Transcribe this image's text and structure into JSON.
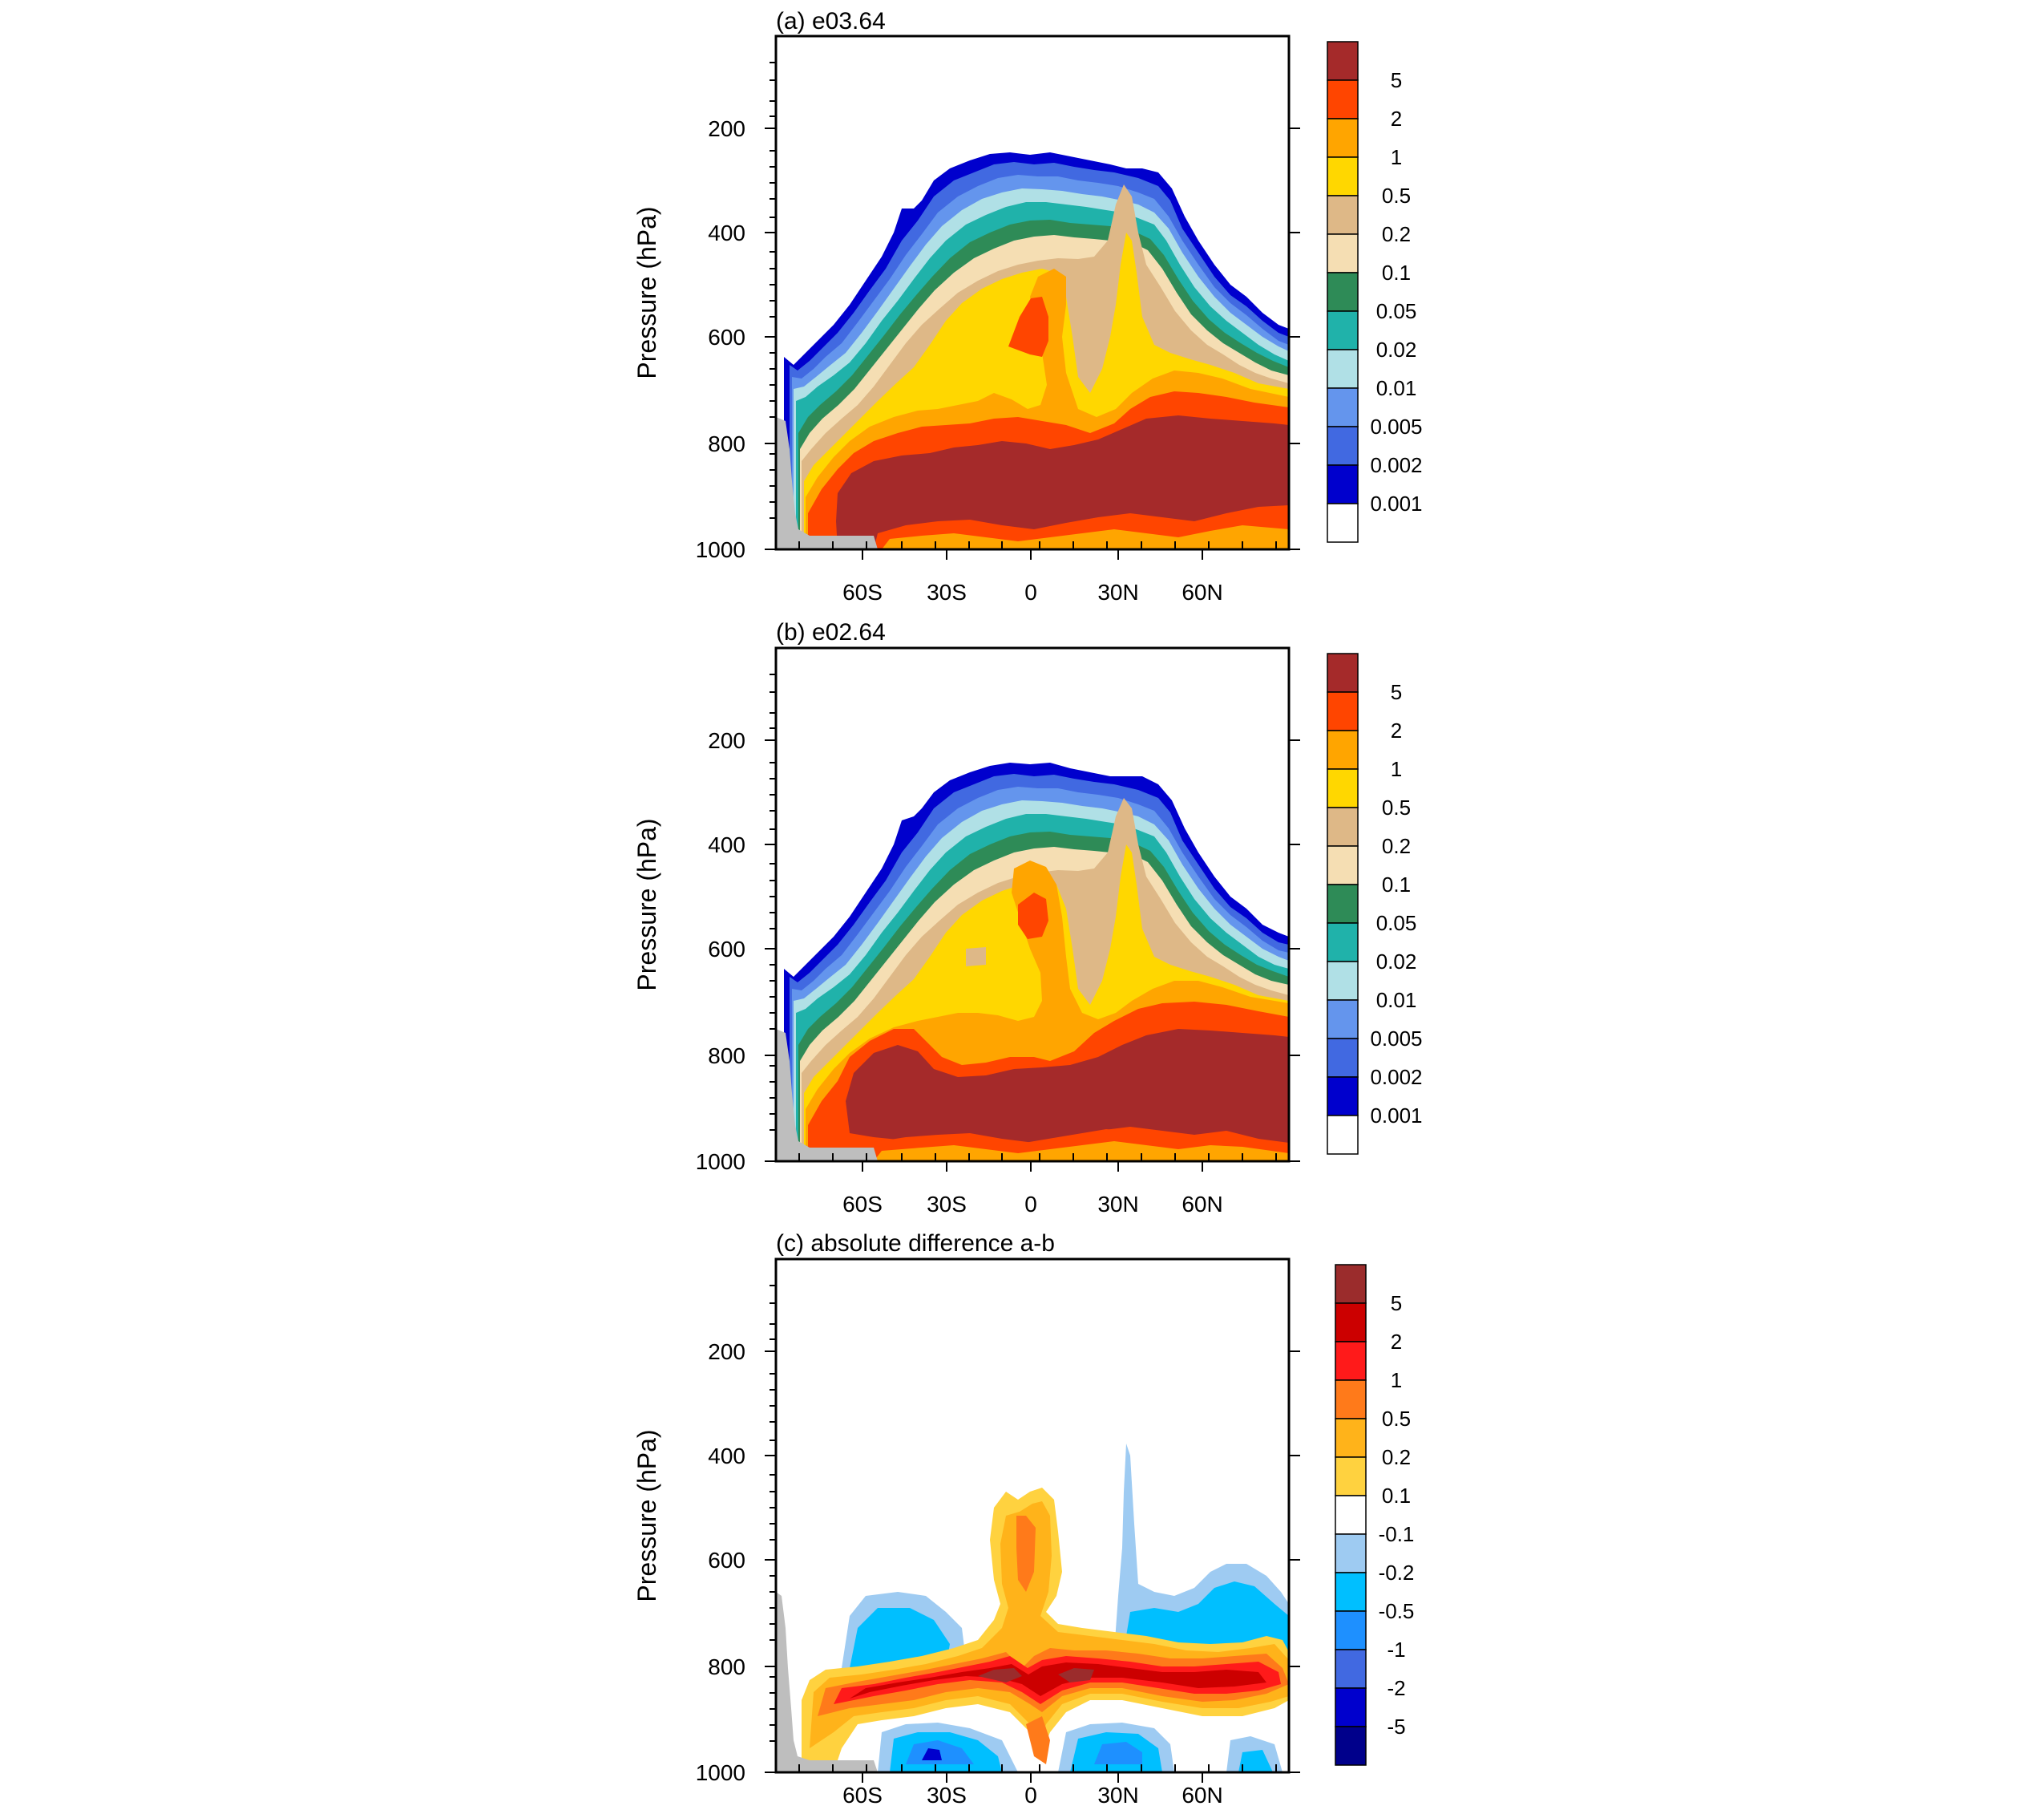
{
  "chart_data": [
    {
      "type": "heatmap",
      "title": "(a) e03.64",
      "ylabel": "Pressure (hPa)",
      "y_ticks": [
        "200",
        "400",
        "600",
        "800",
        "1000"
      ],
      "y_tick_values": [
        200,
        400,
        600,
        800,
        1000
      ],
      "x_ticks": [
        "60S",
        "30S",
        "0",
        "30N",
        "60N"
      ],
      "x_tick_values": [
        -60,
        -30,
        0,
        30,
        60
      ],
      "xlim": [
        -90,
        90
      ],
      "ylim": [
        1000,
        25
      ],
      "colorbar": {
        "labels": [
          "5",
          "2",
          "1",
          "0.5",
          "0.2",
          "0.1",
          "0.05",
          "0.02",
          "0.01",
          "0.005",
          "0.002",
          "0.001"
        ],
        "colors": [
          "#a52a2a",
          "#ff4500",
          "#ffa500",
          "#ffd700",
          "#deb887",
          "#f5deb3",
          "#2e8b57",
          "#20b2aa",
          "#b0e0e6",
          "#6495ed",
          "#4169e1",
          "#0000cd",
          "#ffffff"
        ]
      }
    },
    {
      "type": "heatmap",
      "title": "(b) e02.64",
      "ylabel": "Pressure (hPa)",
      "y_ticks": [
        "200",
        "400",
        "600",
        "800",
        "1000"
      ],
      "y_tick_values": [
        200,
        400,
        600,
        800,
        1000
      ],
      "x_ticks": [
        "60S",
        "30S",
        "0",
        "30N",
        "60N"
      ],
      "x_tick_values": [
        -60,
        -30,
        0,
        30,
        60
      ],
      "xlim": [
        -90,
        90
      ],
      "ylim": [
        1000,
        25
      ],
      "colorbar": {
        "labels": [
          "5",
          "2",
          "1",
          "0.5",
          "0.2",
          "0.1",
          "0.05",
          "0.02",
          "0.01",
          "0.005",
          "0.002",
          "0.001"
        ],
        "colors": [
          "#a52a2a",
          "#ff4500",
          "#ffa500",
          "#ffd700",
          "#deb887",
          "#f5deb3",
          "#2e8b57",
          "#20b2aa",
          "#b0e0e6",
          "#6495ed",
          "#4169e1",
          "#0000cd",
          "#ffffff"
        ]
      }
    },
    {
      "type": "heatmap",
      "title": "(c) absolute difference a-b",
      "ylabel": "Pressure (hPa)",
      "y_ticks": [
        "200",
        "400",
        "600",
        "800",
        "1000"
      ],
      "y_tick_values": [
        200,
        400,
        600,
        800,
        1000
      ],
      "x_ticks": [
        "60S",
        "30S",
        "0",
        "30N",
        "60N"
      ],
      "x_tick_values": [
        -60,
        -30,
        0,
        30,
        60
      ],
      "xlim": [
        -90,
        90
      ],
      "ylim": [
        1000,
        25
      ],
      "colorbar": {
        "labels": [
          "5",
          "2",
          "1",
          "0.5",
          "0.2",
          "0.1",
          "-0.1",
          "-0.2",
          "-0.5",
          "-1",
          "-2",
          "-5"
        ],
        "colors": [
          "#9b2c2c",
          "#cc0000",
          "#ff1a1a",
          "#ff7a1a",
          "#ffb31a",
          "#ffd23f",
          "#ffffff",
          "#9ecbf2",
          "#00bfff",
          "#1e90ff",
          "#4169e1",
          "#0000cd",
          "#00008b"
        ]
      }
    }
  ]
}
